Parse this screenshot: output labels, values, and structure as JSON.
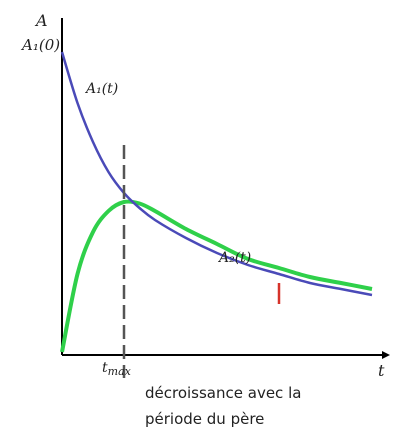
{
  "chart_data": {
    "type": "line",
    "ylabel": "A",
    "xlabel": "t",
    "y_intercept_label": "A₁(0)",
    "series": [
      {
        "name": "A₁(t)",
        "color": "#4a4ab8",
        "x": [
          0,
          0.5,
          1,
          1.5,
          2,
          2.5,
          3,
          4,
          5,
          6,
          7,
          8,
          9,
          10
        ],
        "values": [
          1.0,
          0.83,
          0.7,
          0.6,
          0.53,
          0.48,
          0.44,
          0.38,
          0.33,
          0.29,
          0.26,
          0.23,
          0.21,
          0.19
        ]
      },
      {
        "name": "A₂(t)",
        "color": "#2fd04a",
        "x": [
          0,
          0.5,
          1,
          1.5,
          2,
          2.5,
          3,
          4,
          5,
          6,
          7,
          8,
          9,
          10
        ],
        "values": [
          0.0,
          0.26,
          0.4,
          0.47,
          0.5,
          0.495,
          0.47,
          0.41,
          0.36,
          0.31,
          0.28,
          0.25,
          0.23,
          0.21
        ]
      }
    ],
    "marker": {
      "label": "t_max",
      "x": 2.0
    },
    "annotation": "décroissance avec la\npériode du père",
    "annotation_lines": [
      "décroissance avec la",
      "période du père"
    ],
    "grid": false
  }
}
